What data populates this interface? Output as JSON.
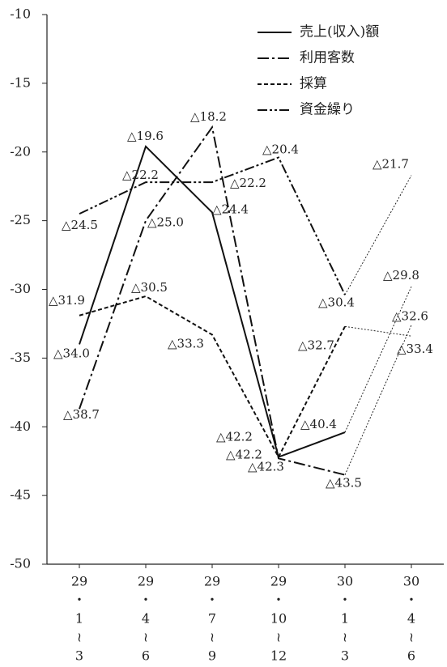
{
  "chart_data": {
    "type": "line",
    "categories": [
      [
        "29",
        "・",
        "1",
        "≀",
        "3"
      ],
      [
        "29",
        "・",
        "4",
        "≀",
        "6"
      ],
      [
        "29",
        "・",
        "7",
        "≀",
        "9"
      ],
      [
        "29",
        "・",
        "10",
        "≀",
        "12"
      ],
      [
        "30",
        "・",
        "1",
        "≀",
        "3"
      ],
      [
        "30",
        "・",
        "4",
        "≀",
        "6"
      ]
    ],
    "series": [
      {
        "name": "売上(収入)額",
        "color": "#111111",
        "values": [
          -34.0,
          -19.6,
          -24.4,
          -42.2,
          -40.4,
          -29.8
        ],
        "value_labels": [
          "△34.0",
          "△19.6",
          "△24.4",
          "△42.2",
          "△40.4",
          "△29.8"
        ]
      },
      {
        "name": "利用客数",
        "color": "#111111",
        "values": [
          -38.7,
          -25.0,
          -18.2,
          -42.3,
          -43.5,
          -32.6
        ],
        "value_labels": [
          "△38.7",
          "△25.0",
          "△18.2",
          "△42.3",
          "△43.5",
          "△32.6"
        ]
      },
      {
        "name": "採算",
        "color": "#111111",
        "values": [
          -31.9,
          -30.5,
          -33.3,
          -42.2,
          -32.7,
          -33.4
        ],
        "value_labels": [
          "△31.9",
          "△30.5",
          "△33.3",
          "△42.2",
          "△32.7",
          "△33.4"
        ]
      },
      {
        "name": "資金繰り",
        "color": "#111111",
        "values": [
          -24.5,
          -22.2,
          -22.2,
          -20.4,
          -30.4,
          -21.7
        ],
        "value_labels": [
          "△24.5",
          "△22.2",
          "△22.2",
          "△20.4",
          "△30.4",
          "△21.7"
        ]
      }
    ],
    "ylim": [
      -50,
      -10
    ],
    "yticks": [
      -50,
      -45,
      -40,
      -35,
      -30,
      -25,
      -20,
      -15,
      -10
    ]
  }
}
